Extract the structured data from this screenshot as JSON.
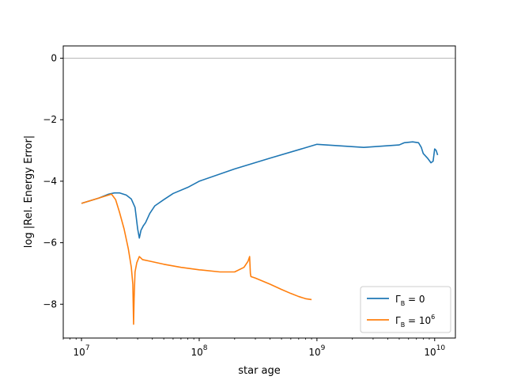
{
  "chart_data": {
    "type": "line",
    "xlabel": "star age",
    "ylabel": "log |Rel. Energy Error|",
    "xscale": "log",
    "xlim": [
      7000000,
      15000000000
    ],
    "ylim": [
      -9.1,
      0.4
    ],
    "grid": false,
    "legend_position": "lower-right",
    "x_ticks": [
      {
        "value": 10000000,
        "base": "10",
        "exp": "7"
      },
      {
        "value": 100000000,
        "base": "10",
        "exp": "8"
      },
      {
        "value": 1000000000,
        "base": "10",
        "exp": "9"
      },
      {
        "value": 10000000000,
        "base": "10",
        "exp": "10"
      }
    ],
    "y_ticks": [
      {
        "value": 0,
        "label": "0"
      },
      {
        "value": -2,
        "label": "−2"
      },
      {
        "value": -4,
        "label": "−4"
      },
      {
        "value": -6,
        "label": "−6"
      },
      {
        "value": -8,
        "label": "−8"
      }
    ],
    "reference_line": {
      "y": 0,
      "color": "#a0a0a0"
    },
    "series": [
      {
        "name": "Γ_B = 0",
        "legend_main": "Γ",
        "legend_sub": "B",
        "legend_rest": " = 0",
        "color": "#1f77b4",
        "points": [
          [
            10000000,
            -4.72
          ],
          [
            14000000,
            -4.55
          ],
          [
            17000000,
            -4.42
          ],
          [
            19000000,
            -4.38
          ],
          [
            21000000,
            -4.38
          ],
          [
            24000000,
            -4.45
          ],
          [
            26500000,
            -4.58
          ],
          [
            28500000,
            -4.85
          ],
          [
            30000000,
            -5.55
          ],
          [
            31000000,
            -5.85
          ],
          [
            32000000,
            -5.6
          ],
          [
            33500000,
            -5.45
          ],
          [
            35000000,
            -5.35
          ],
          [
            38000000,
            -5.05
          ],
          [
            42000000,
            -4.8
          ],
          [
            50000000,
            -4.6
          ],
          [
            60000000,
            -4.4
          ],
          [
            80000000,
            -4.2
          ],
          [
            100000000,
            -4.0
          ],
          [
            200000000,
            -3.6
          ],
          [
            400000000,
            -3.25
          ],
          [
            1000000000,
            -2.8
          ],
          [
            2500000000,
            -2.9
          ],
          [
            5000000000,
            -2.82
          ],
          [
            5500000000,
            -2.75
          ],
          [
            6500000000,
            -2.72
          ],
          [
            7300000000,
            -2.75
          ],
          [
            7700000000,
            -2.9
          ],
          [
            8000000000,
            -3.1
          ],
          [
            8700000000,
            -3.25
          ],
          [
            9300000000,
            -3.4
          ],
          [
            9700000000,
            -3.35
          ],
          [
            10000000000,
            -2.95
          ],
          [
            10300000000,
            -3.0
          ],
          [
            10600000000,
            -3.15
          ]
        ]
      },
      {
        "name": "Γ_B = 10^6",
        "legend_main": "Γ",
        "legend_sub": "B",
        "legend_rest": " = 10",
        "legend_sup": "6",
        "color": "#ff7f0e",
        "points": [
          [
            10000000,
            -4.72
          ],
          [
            14000000,
            -4.55
          ],
          [
            18000000,
            -4.42
          ],
          [
            19500000,
            -4.6
          ],
          [
            21000000,
            -5.0
          ],
          [
            23000000,
            -5.55
          ],
          [
            25000000,
            -6.2
          ],
          [
            26500000,
            -6.8
          ],
          [
            27300000,
            -7.35
          ],
          [
            27700000,
            -8.65
          ],
          [
            28000000,
            -7.8
          ],
          [
            28500000,
            -6.95
          ],
          [
            29500000,
            -6.65
          ],
          [
            31000000,
            -6.45
          ],
          [
            33000000,
            -6.55
          ],
          [
            38000000,
            -6.6
          ],
          [
            50000000,
            -6.7
          ],
          [
            70000000,
            -6.8
          ],
          [
            100000000,
            -6.88
          ],
          [
            150000000,
            -6.95
          ],
          [
            200000000,
            -6.95
          ],
          [
            240000000,
            -6.8
          ],
          [
            260000000,
            -6.6
          ],
          [
            268000000,
            -6.45
          ],
          [
            272000000,
            -7.0
          ],
          [
            275000000,
            -7.1
          ],
          [
            300000000,
            -7.15
          ],
          [
            400000000,
            -7.35
          ],
          [
            500000000,
            -7.52
          ],
          [
            600000000,
            -7.65
          ],
          [
            700000000,
            -7.75
          ],
          [
            800000000,
            -7.82
          ],
          [
            900000000,
            -7.85
          ]
        ]
      }
    ]
  }
}
